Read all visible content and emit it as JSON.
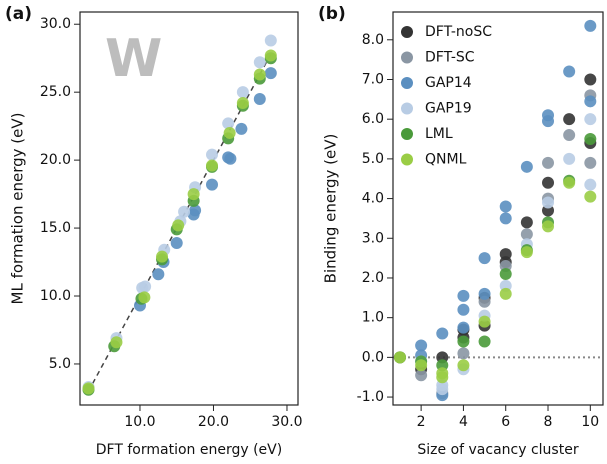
{
  "chart_data": [
    {
      "type": "scatter",
      "panel": "(a)",
      "annotation": "W",
      "xlabel": "DFT formation energy (eV)",
      "ylabel": "ML formation energy (eV)",
      "xlim": [
        1.84,
        31.5
      ],
      "ylim": [
        1.98,
        30.9
      ],
      "xticks": [
        {
          "value": 10,
          "label": "10.0"
        },
        {
          "value": 20,
          "label": "20.0"
        },
        {
          "value": 30,
          "label": "30.0"
        }
      ],
      "yticks": [
        {
          "value": 5,
          "label": "5.0"
        },
        {
          "value": 10,
          "label": "10.0"
        },
        {
          "value": 15,
          "label": "15.0"
        },
        {
          "value": 20,
          "label": "20.0"
        },
        {
          "value": 25,
          "label": "25.0"
        },
        {
          "value": 30,
          "label": "30.0"
        }
      ],
      "diagonal": true,
      "series": [
        {
          "color": "#5b8fc0",
          "x": [
            10,
            12.5,
            13.2,
            15,
            17.3,
            17.5,
            19.8,
            22,
            22.3,
            23.8,
            26.3,
            27.8
          ],
          "values": [
            9.3,
            11.6,
            12.5,
            13.9,
            16.0,
            16.3,
            18.2,
            20.2,
            20.1,
            22.3,
            24.5,
            26.4
          ]
        },
        {
          "color": "#b8cce4",
          "x": [
            3,
            6.8,
            10.3,
            10.7,
            13.3,
            15.5,
            16,
            17.5,
            19.8,
            22,
            24,
            26.3,
            27.8
          ],
          "values": [
            3.3,
            6.9,
            10.6,
            10.7,
            13.4,
            15.5,
            16.2,
            18,
            20.4,
            22.7,
            25,
            27.2,
            28.8
          ]
        },
        {
          "color": "#4a9a3a",
          "x": [
            3,
            6.5,
            10.2,
            13,
            15,
            17.3,
            19.8,
            22,
            24,
            26.3,
            27.8
          ],
          "values": [
            3.1,
            6.3,
            9.8,
            12.7,
            14.9,
            17,
            19.5,
            21.6,
            24,
            26,
            27.5
          ]
        },
        {
          "color": "#9acd45",
          "x": [
            3,
            6.8,
            10.6,
            13,
            15.2,
            17.3,
            19.8,
            22.2,
            24,
            26.3,
            27.8
          ],
          "values": [
            3.2,
            6.6,
            9.9,
            12.9,
            15.2,
            17.5,
            19.6,
            22,
            24.2,
            26.3,
            27.7
          ]
        }
      ]
    },
    {
      "type": "scatter",
      "panel": "(b)",
      "xlabel": "Size of vacancy cluster",
      "ylabel": "Binding energy (eV)",
      "xlim": [
        0.67,
        10.6
      ],
      "ylim": [
        -1.2,
        8.7
      ],
      "xticks": [
        2,
        4,
        6,
        8,
        10
      ],
      "yticks": [
        {
          "value": -1,
          "label": "-1.0"
        },
        {
          "value": 0,
          "label": "0.0"
        },
        {
          "value": 1,
          "label": "1.0"
        },
        {
          "value": 2,
          "label": "2.0"
        },
        {
          "value": 3,
          "label": "3.0"
        },
        {
          "value": 4,
          "label": "4.0"
        },
        {
          "value": 5,
          "label": "5.0"
        },
        {
          "value": 6,
          "label": "6.0"
        },
        {
          "value": 7,
          "label": "7.0"
        },
        {
          "value": 8,
          "label": "8.0"
        }
      ],
      "reference_y": 0,
      "legend": "upper left",
      "series": [
        {
          "name": "DFT-noSC",
          "color": "#333333",
          "x": [
            1,
            2,
            3,
            4,
            4,
            5,
            5,
            6,
            6,
            7,
            8,
            8,
            9,
            10,
            10
          ],
          "values": [
            0,
            -0.3,
            0,
            0.7,
            0.5,
            0.8,
            1.5,
            2.6,
            2.4,
            3.4,
            4.4,
            3.7,
            6.0,
            7.0,
            5.4
          ]
        },
        {
          "name": "DFT-SC",
          "color": "#8a96a3",
          "x": [
            2,
            3,
            4,
            5,
            6,
            7,
            8,
            8,
            9,
            10,
            10
          ],
          "values": [
            -0.45,
            -0.9,
            0.1,
            1.4,
            2.3,
            3.1,
            4.9,
            4.0,
            5.6,
            6.6,
            4.9
          ]
        },
        {
          "name": "GAP14",
          "color": "#5b8fc0",
          "x": [
            2,
            2,
            3,
            3,
            4,
            4,
            4,
            5,
            5,
            6,
            6,
            7,
            8,
            8,
            9,
            10,
            10
          ],
          "values": [
            0.3,
            0.05,
            0.6,
            -0.95,
            1.55,
            1.2,
            0.75,
            2.5,
            1.6,
            3.8,
            3.5,
            4.8,
            6.1,
            5.95,
            7.2,
            8.35,
            6.45
          ]
        },
        {
          "name": "GAP19",
          "color": "#b8cce4",
          "x": [
            2,
            3,
            3,
            4,
            5,
            6,
            7,
            8,
            9,
            10,
            10
          ],
          "values": [
            -0.1,
            -0.7,
            -0.8,
            -0.3,
            1.05,
            1.8,
            2.85,
            3.9,
            5.0,
            6.0,
            4.35
          ]
        },
        {
          "name": "LML",
          "color": "#4a9a3a",
          "x": [
            1,
            2,
            3,
            4,
            5,
            6,
            7,
            8,
            9,
            10
          ],
          "values": [
            0,
            -0.1,
            -0.2,
            0.4,
            0.4,
            2.1,
            2.7,
            3.4,
            4.45,
            5.5
          ]
        },
        {
          "name": "QNML",
          "color": "#9acd45",
          "x": [
            1,
            2,
            3,
            3,
            4,
            5,
            6,
            7,
            8,
            9,
            10
          ],
          "values": [
            0,
            -0.2,
            -0.4,
            -0.5,
            -0.2,
            0.9,
            1.6,
            2.65,
            3.3,
            4.4,
            4.05
          ]
        }
      ]
    }
  ]
}
